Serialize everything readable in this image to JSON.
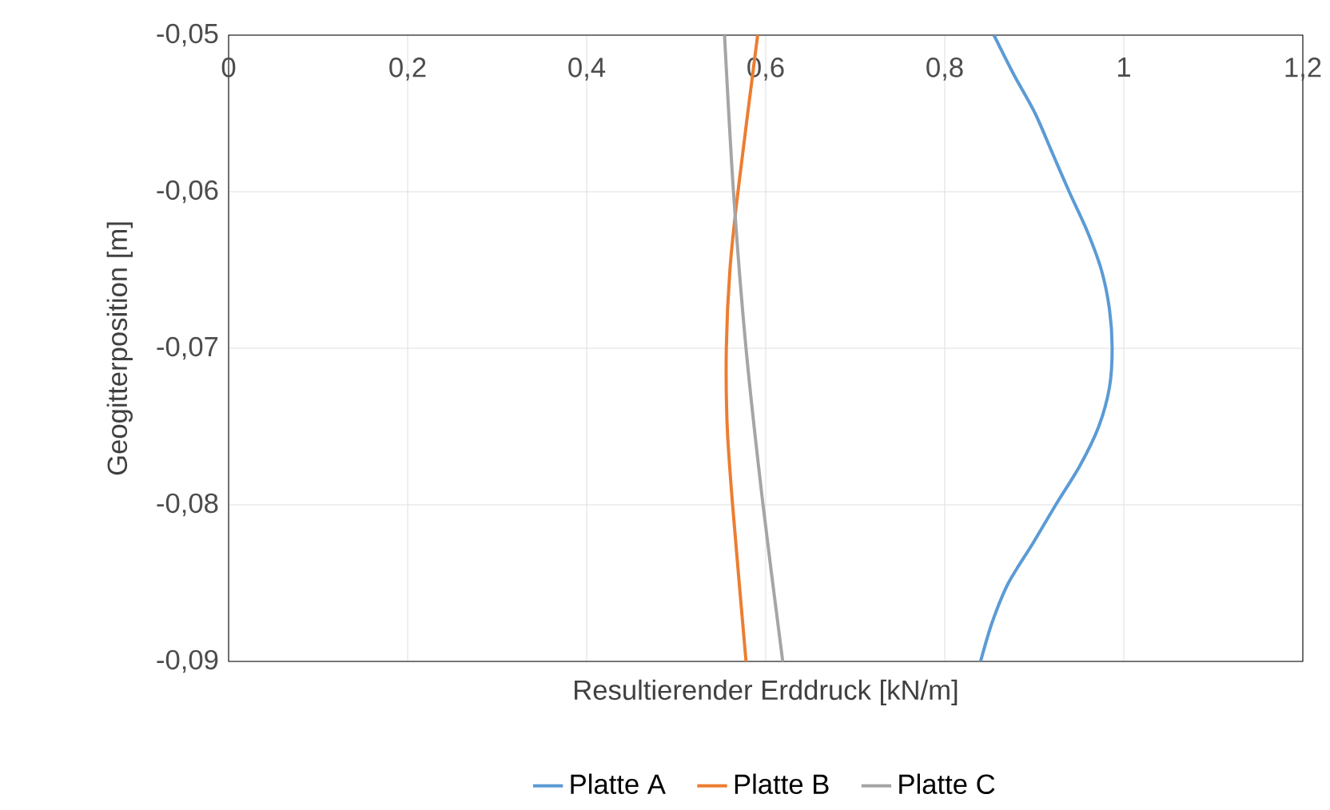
{
  "chart_data": {
    "type": "line",
    "xlabel": "Resultierender Erddruck [kN/m]",
    "ylabel": "Geogitterposition [m]",
    "xlim": [
      0,
      1.2
    ],
    "ylim": [
      -0.09,
      -0.05
    ],
    "xticks": [
      {
        "value": 0,
        "label": "0"
      },
      {
        "value": 0.2,
        "label": "0,2"
      },
      {
        "value": 0.4,
        "label": "0,4"
      },
      {
        "value": 0.6,
        "label": "0,6"
      },
      {
        "value": 0.8,
        "label": "0,8"
      },
      {
        "value": 1,
        "label": "1"
      },
      {
        "value": 1.2,
        "label": "1,2"
      }
    ],
    "yticks": [
      {
        "value": -0.05,
        "label": "-0,05"
      },
      {
        "value": -0.06,
        "label": "-0,06"
      },
      {
        "value": -0.07,
        "label": "-0,07"
      },
      {
        "value": -0.08,
        "label": "-0,08"
      },
      {
        "value": -0.09,
        "label": "-0,09"
      }
    ],
    "grid": true,
    "legend": "bottom",
    "marker": "none",
    "line_style": "solid",
    "series": [
      {
        "name": "Platte A",
        "color": "#5b9bd5",
        "x": [
          0.855,
          0.877,
          0.901,
          0.92,
          0.939,
          0.959,
          0.975,
          0.984,
          0.987,
          0.984,
          0.972,
          0.951,
          0.924,
          0.898,
          0.871,
          0.853,
          0.84
        ],
        "values": [
          -0.05,
          -0.0525,
          -0.055,
          -0.0575,
          -0.06,
          -0.0625,
          -0.065,
          -0.0675,
          -0.07,
          -0.0725,
          -0.075,
          -0.0775,
          -0.08,
          -0.0825,
          -0.085,
          -0.0875,
          -0.09
        ]
      },
      {
        "name": "Platte B",
        "color": "#ed7d31",
        "x": [
          0.591,
          0.569,
          0.56,
          0.556,
          0.557,
          0.563,
          0.578
        ],
        "values": [
          -0.05,
          -0.06,
          -0.065,
          -0.07,
          -0.075,
          -0.08,
          -0.09
        ]
      },
      {
        "name": "Platte C",
        "color": "#a5a5a5",
        "x": [
          0.554,
          0.564,
          0.578,
          0.597,
          0.619
        ],
        "values": [
          -0.05,
          -0.06,
          -0.07,
          -0.08,
          -0.09
        ]
      }
    ]
  }
}
